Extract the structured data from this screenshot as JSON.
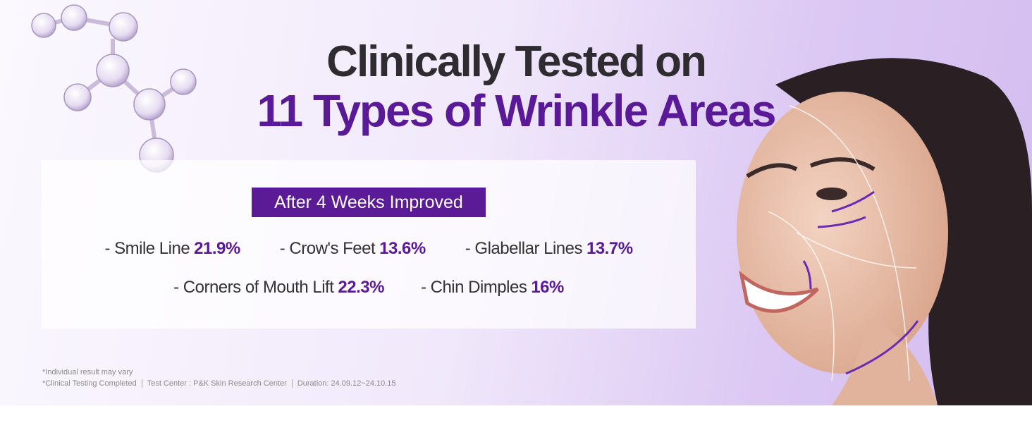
{
  "header": {
    "title_line1": "Clinically Tested on",
    "title_line2": "11 Types of Wrinkle Areas"
  },
  "results": {
    "badge": "After 4 Weeks Improved",
    "rows": [
      [
        {
          "label": "- Smile Line",
          "value": "21.9%"
        },
        {
          "label": "- Crow's Feet",
          "value": "13.6%"
        },
        {
          "label": "- Glabellar Lines",
          "value": "13.7%"
        }
      ],
      [
        {
          "label": "- Corners of Mouth Lift",
          "value": "22.3%"
        },
        {
          "label": "- Chin Dimples",
          "value": "16%"
        }
      ]
    ]
  },
  "notes": {
    "line1": "*Individual result may vary",
    "line2": [
      "*Clinical Testing Completed",
      "Test Center : P&K Skin Research Center",
      "Duration: 24.09.12~24.10.15"
    ]
  }
}
